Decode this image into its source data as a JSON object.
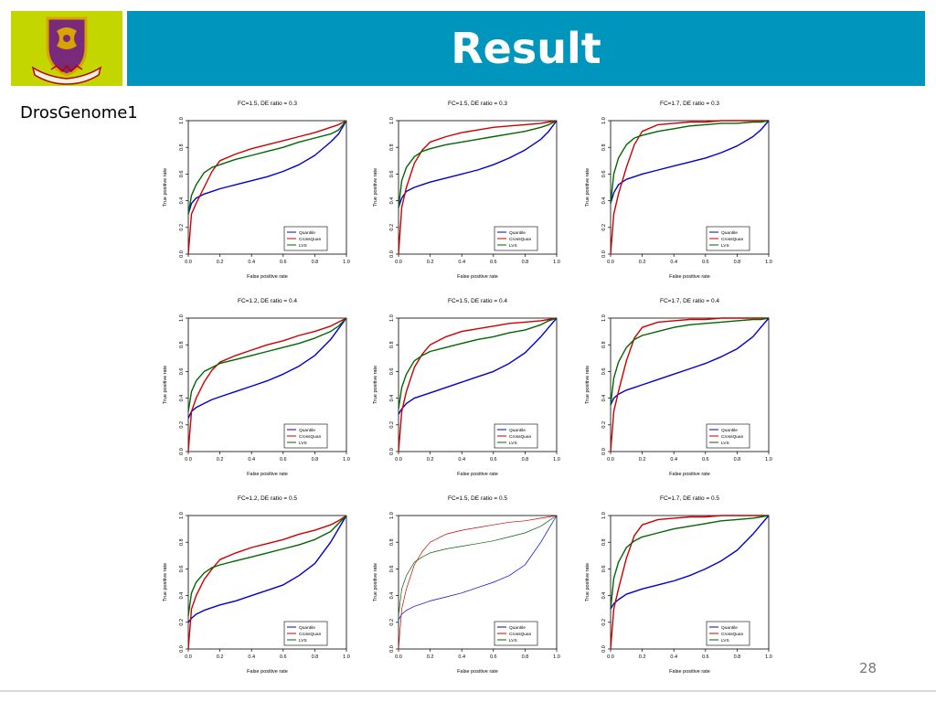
{
  "slide": {
    "title": "Result",
    "subtitle": "DrosGenome1",
    "page_number": "28"
  },
  "colors": {
    "title_bar": "#0095bd",
    "logo_bg": "#c3d600",
    "quantile": "#0000cc",
    "crossquan": "#cc0000",
    "lvs": "#006600"
  },
  "icons": {
    "logo": "university-crest-icon"
  },
  "chart_data": [
    {
      "type": "line",
      "title": "FC=1.5, DE ratio = 0.3",
      "xlabel": "False positive rate",
      "ylabel": "True positive rate",
      "xlim": [
        0,
        1
      ],
      "ylim": [
        0,
        1
      ],
      "ticks": [
        "0.0",
        "0.2",
        "0.4",
        "0.6",
        "0.8",
        "1.0"
      ],
      "legend": "bottom-right",
      "x": [
        0,
        0.02,
        0.05,
        0.1,
        0.15,
        0.2,
        0.3,
        0.4,
        0.5,
        0.6,
        0.7,
        0.8,
        0.9,
        0.95,
        1
      ],
      "series": [
        {
          "name": "Quantile",
          "values": [
            0.3,
            0.38,
            0.42,
            0.45,
            0.47,
            0.49,
            0.52,
            0.55,
            0.58,
            0.62,
            0.67,
            0.74,
            0.84,
            0.9,
            1
          ]
        },
        {
          "name": "CrossQuan",
          "values": [
            0,
            0.3,
            0.38,
            0.5,
            0.62,
            0.7,
            0.75,
            0.79,
            0.82,
            0.85,
            0.88,
            0.91,
            0.95,
            0.97,
            1
          ]
        },
        {
          "name": "LVS",
          "values": [
            0.3,
            0.44,
            0.52,
            0.61,
            0.65,
            0.67,
            0.71,
            0.74,
            0.77,
            0.8,
            0.84,
            0.87,
            0.9,
            0.93,
            1
          ]
        }
      ]
    },
    {
      "type": "line",
      "title": "FC=1.5, DE ratio = 0.3",
      "xlabel": "False positive rate",
      "ylabel": "True positive rate",
      "xlim": [
        0,
        1
      ],
      "ylim": [
        0,
        1
      ],
      "ticks": [
        "0.0",
        "0.2",
        "0.4",
        "0.6",
        "0.8",
        "1.0"
      ],
      "legend": "bottom-right",
      "x": [
        0,
        0.02,
        0.05,
        0.1,
        0.15,
        0.2,
        0.3,
        0.4,
        0.5,
        0.6,
        0.7,
        0.8,
        0.9,
        0.95,
        1
      ],
      "series": [
        {
          "name": "Quantile",
          "values": [
            0.35,
            0.42,
            0.47,
            0.5,
            0.52,
            0.54,
            0.57,
            0.6,
            0.63,
            0.67,
            0.72,
            0.78,
            0.86,
            0.92,
            1
          ]
        },
        {
          "name": "CrossQuan",
          "values": [
            0,
            0.35,
            0.5,
            0.68,
            0.78,
            0.84,
            0.88,
            0.91,
            0.93,
            0.95,
            0.96,
            0.97,
            0.98,
            0.99,
            1
          ]
        },
        {
          "name": "LVS",
          "values": [
            0.35,
            0.55,
            0.65,
            0.73,
            0.77,
            0.79,
            0.82,
            0.84,
            0.86,
            0.88,
            0.9,
            0.92,
            0.95,
            0.97,
            1
          ]
        }
      ]
    },
    {
      "type": "line",
      "title": "FC=1.7, DE ratio = 0.3",
      "xlabel": "False positive rate",
      "ylabel": "True positive rate",
      "xlim": [
        0,
        1
      ],
      "ylim": [
        0,
        1
      ],
      "ticks": [
        "0.0",
        "0.2",
        "0.4",
        "0.6",
        "0.8",
        "1.0"
      ],
      "legend": "bottom-right",
      "x": [
        0,
        0.02,
        0.05,
        0.1,
        0.15,
        0.2,
        0.3,
        0.4,
        0.5,
        0.6,
        0.7,
        0.8,
        0.9,
        0.95,
        1
      ],
      "series": [
        {
          "name": "Quantile",
          "values": [
            0.38,
            0.46,
            0.52,
            0.56,
            0.58,
            0.6,
            0.63,
            0.66,
            0.69,
            0.72,
            0.76,
            0.81,
            0.88,
            0.93,
            1
          ]
        },
        {
          "name": "CrossQuan",
          "values": [
            0,
            0.3,
            0.45,
            0.65,
            0.82,
            0.92,
            0.97,
            0.98,
            0.99,
            0.99,
            1,
            1,
            1,
            1,
            1
          ]
        },
        {
          "name": "LVS",
          "values": [
            0.38,
            0.6,
            0.72,
            0.82,
            0.87,
            0.89,
            0.92,
            0.94,
            0.96,
            0.97,
            0.98,
            0.98,
            0.99,
            0.99,
            1
          ]
        }
      ]
    },
    {
      "type": "line",
      "title": "FC=1.2, DE ratio = 0.4",
      "xlabel": "False positive rate",
      "ylabel": "True positive rate",
      "xlim": [
        0,
        1
      ],
      "ylim": [
        0,
        1
      ],
      "ticks": [
        "0.0",
        "0.2",
        "0.4",
        "0.6",
        "0.8",
        "1.0"
      ],
      "legend": "bottom-right",
      "x": [
        0,
        0.02,
        0.05,
        0.1,
        0.15,
        0.2,
        0.3,
        0.4,
        0.5,
        0.6,
        0.7,
        0.8,
        0.9,
        0.95,
        1
      ],
      "series": [
        {
          "name": "Quantile",
          "values": [
            0.25,
            0.3,
            0.33,
            0.36,
            0.39,
            0.41,
            0.45,
            0.49,
            0.53,
            0.58,
            0.64,
            0.72,
            0.84,
            0.92,
            1
          ]
        },
        {
          "name": "CrossQuan",
          "values": [
            0,
            0.3,
            0.4,
            0.52,
            0.61,
            0.67,
            0.72,
            0.76,
            0.8,
            0.83,
            0.87,
            0.9,
            0.94,
            0.97,
            1
          ]
        },
        {
          "name": "LVS",
          "values": [
            0.3,
            0.45,
            0.53,
            0.6,
            0.63,
            0.66,
            0.69,
            0.72,
            0.75,
            0.78,
            0.81,
            0.85,
            0.9,
            0.94,
            1
          ]
        }
      ]
    },
    {
      "type": "line",
      "title": "FC=1.5, DE ratio = 0.4",
      "xlabel": "False positive rate",
      "ylabel": "True positive rate",
      "xlim": [
        0,
        1
      ],
      "ylim": [
        0,
        1
      ],
      "ticks": [
        "0.0",
        "0.2",
        "0.4",
        "0.6",
        "0.8",
        "1.0"
      ],
      "legend": "bottom-right",
      "x": [
        0,
        0.02,
        0.05,
        0.1,
        0.15,
        0.2,
        0.3,
        0.4,
        0.5,
        0.6,
        0.7,
        0.8,
        0.9,
        0.95,
        1
      ],
      "series": [
        {
          "name": "Quantile",
          "values": [
            0.28,
            0.32,
            0.36,
            0.4,
            0.42,
            0.44,
            0.48,
            0.52,
            0.56,
            0.6,
            0.66,
            0.74,
            0.86,
            0.93,
            1
          ]
        },
        {
          "name": "CrossQuan",
          "values": [
            0,
            0.3,
            0.45,
            0.63,
            0.73,
            0.8,
            0.86,
            0.9,
            0.92,
            0.94,
            0.96,
            0.97,
            0.98,
            0.99,
            1
          ]
        },
        {
          "name": "LVS",
          "values": [
            0.32,
            0.48,
            0.58,
            0.68,
            0.72,
            0.75,
            0.78,
            0.81,
            0.84,
            0.86,
            0.89,
            0.91,
            0.95,
            0.98,
            1
          ]
        }
      ]
    },
    {
      "type": "line",
      "title": "FC=1.7, DE ratio = 0.4",
      "xlabel": "False positive rate",
      "ylabel": "True positive rate",
      "xlim": [
        0,
        1
      ],
      "ylim": [
        0,
        1
      ],
      "ticks": [
        "0.0",
        "0.2",
        "0.4",
        "0.6",
        "0.8",
        "1.0"
      ],
      "legend": "bottom-right",
      "x": [
        0,
        0.02,
        0.05,
        0.1,
        0.15,
        0.2,
        0.3,
        0.4,
        0.5,
        0.6,
        0.7,
        0.8,
        0.9,
        0.95,
        1
      ],
      "series": [
        {
          "name": "Quantile",
          "values": [
            0.35,
            0.4,
            0.43,
            0.46,
            0.48,
            0.5,
            0.54,
            0.58,
            0.62,
            0.66,
            0.71,
            0.77,
            0.86,
            0.93,
            1
          ]
        },
        {
          "name": "CrossQuan",
          "values": [
            0,
            0.3,
            0.45,
            0.68,
            0.85,
            0.93,
            0.97,
            0.98,
            0.99,
            0.99,
            1,
            1,
            1,
            1,
            1
          ]
        },
        {
          "name": "LVS",
          "values": [
            0.35,
            0.55,
            0.67,
            0.78,
            0.84,
            0.87,
            0.9,
            0.93,
            0.95,
            0.96,
            0.97,
            0.98,
            0.99,
            0.99,
            1
          ]
        }
      ]
    },
    {
      "type": "line",
      "title": "FC=1.2, DE ratio = 0.5",
      "xlabel": "False positive rate",
      "ylabel": "True positive rate",
      "xlim": [
        0,
        1
      ],
      "ylim": [
        0,
        1
      ],
      "ticks": [
        "0.0",
        "0.2",
        "0.4",
        "0.6",
        "0.8",
        "1.0"
      ],
      "legend": "bottom-right",
      "x": [
        0,
        0.02,
        0.05,
        0.1,
        0.15,
        0.2,
        0.3,
        0.4,
        0.5,
        0.6,
        0.7,
        0.8,
        0.9,
        0.95,
        1
      ],
      "series": [
        {
          "name": "Quantile",
          "values": [
            0.2,
            0.23,
            0.26,
            0.29,
            0.31,
            0.33,
            0.36,
            0.4,
            0.44,
            0.48,
            0.55,
            0.64,
            0.8,
            0.9,
            1
          ]
        },
        {
          "name": "CrossQuan",
          "values": [
            0,
            0.3,
            0.4,
            0.52,
            0.6,
            0.67,
            0.72,
            0.76,
            0.79,
            0.82,
            0.86,
            0.89,
            0.93,
            0.96,
            1
          ]
        },
        {
          "name": "LVS",
          "values": [
            0.25,
            0.42,
            0.5,
            0.57,
            0.61,
            0.63,
            0.66,
            0.69,
            0.72,
            0.75,
            0.78,
            0.82,
            0.88,
            0.94,
            1
          ]
        }
      ]
    },
    {
      "type": "line",
      "title": "FC=1.5, DE ratio = 0.5",
      "xlabel": "False positive rate",
      "ylabel": "True positive rate",
      "xlim": [
        0,
        1
      ],
      "ylim": [
        0,
        1
      ],
      "ticks": [
        "0.0",
        "0.2",
        "0.4",
        "0.6",
        "0.8",
        "1.0"
      ],
      "legend": "bottom-right",
      "x": [
        0,
        0.02,
        0.05,
        0.1,
        0.15,
        0.2,
        0.3,
        0.4,
        0.5,
        0.6,
        0.7,
        0.8,
        0.9,
        0.95,
        1
      ],
      "series": [
        {
          "name": "Quantile",
          "values": [
            0.22,
            0.26,
            0.29,
            0.32,
            0.34,
            0.36,
            0.39,
            0.42,
            0.46,
            0.5,
            0.55,
            0.63,
            0.8,
            0.9,
            1
          ]
        },
        {
          "name": "CrossQuan",
          "values": [
            0,
            0.3,
            0.45,
            0.63,
            0.73,
            0.8,
            0.86,
            0.89,
            0.91,
            0.93,
            0.95,
            0.96,
            0.98,
            0.99,
            1
          ]
        },
        {
          "name": "LVS",
          "values": [
            0.25,
            0.45,
            0.55,
            0.65,
            0.69,
            0.72,
            0.75,
            0.77,
            0.79,
            0.81,
            0.84,
            0.87,
            0.92,
            0.96,
            1
          ]
        }
      ]
    },
    {
      "type": "line",
      "title": "FC=1.7, DE ratio = 0.5",
      "xlabel": "False positive rate",
      "ylabel": "True positive rate",
      "xlim": [
        0,
        1
      ],
      "ylim": [
        0,
        1
      ],
      "ticks": [
        "0.0",
        "0.2",
        "0.4",
        "0.6",
        "0.8",
        "1.0"
      ],
      "legend": "bottom-right",
      "x": [
        0,
        0.02,
        0.05,
        0.1,
        0.15,
        0.2,
        0.3,
        0.4,
        0.5,
        0.6,
        0.7,
        0.8,
        0.9,
        0.95,
        1
      ],
      "series": [
        {
          "name": "Quantile",
          "values": [
            0.3,
            0.34,
            0.37,
            0.41,
            0.43,
            0.45,
            0.48,
            0.51,
            0.55,
            0.6,
            0.66,
            0.74,
            0.86,
            0.93,
            1
          ]
        },
        {
          "name": "CrossQuan",
          "values": [
            0,
            0.3,
            0.45,
            0.68,
            0.85,
            0.93,
            0.97,
            0.98,
            0.99,
            0.99,
            1,
            1,
            1,
            1,
            1
          ]
        },
        {
          "name": "LVS",
          "values": [
            0.3,
            0.53,
            0.65,
            0.76,
            0.81,
            0.84,
            0.87,
            0.9,
            0.92,
            0.94,
            0.96,
            0.97,
            0.98,
            0.99,
            1
          ]
        }
      ]
    }
  ]
}
